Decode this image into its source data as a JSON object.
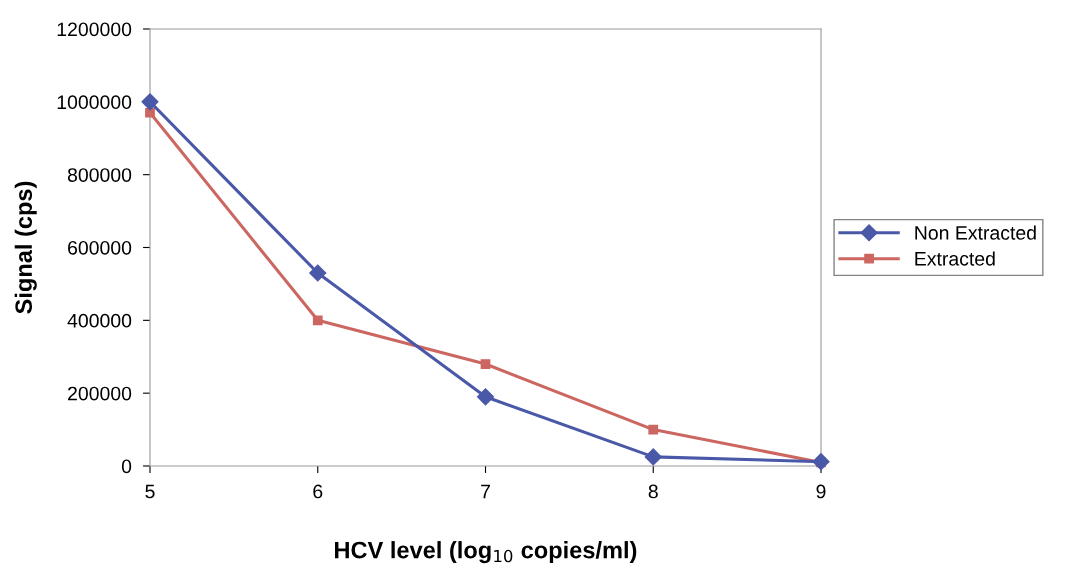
{
  "chart_data": {
    "type": "line",
    "xlabel": "HCV level (log$_{10}$ copies/ml)",
    "ylabel": "Signal (cps)",
    "x": [
      5,
      6,
      7,
      8,
      9
    ],
    "series": [
      {
        "name": "Non Extracted",
        "color": "#4a58a8",
        "marker": "diamond",
        "values": [
          1000000,
          530000,
          190000,
          25000,
          12000
        ]
      },
      {
        "name": "Extracted",
        "color": "#cc6660",
        "marker": "square",
        "values": [
          970000,
          400000,
          280000,
          100000,
          10000
        ]
      }
    ],
    "xlim": [
      5,
      9
    ],
    "xticks": [
      5,
      6,
      7,
      8,
      9
    ],
    "ylim": [
      0,
      1200000
    ],
    "yticks": [
      0,
      200000,
      400000,
      600000,
      800000,
      1000000,
      1200000
    ],
    "grid": false,
    "legend": "right",
    "line_style": "solid"
  }
}
